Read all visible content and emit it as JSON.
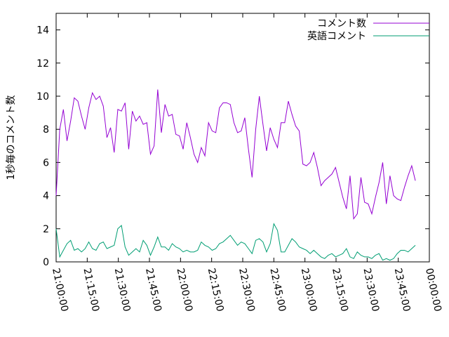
{
  "chart_data": {
    "type": "line",
    "ylabel": "1秒毎のコメント数",
    "x": [
      0,
      1.75,
      3.5,
      5.25,
      7,
      8.75,
      10.5,
      12.25,
      14,
      15.75,
      17.5,
      19.25,
      21,
      22.75,
      24.5,
      26.25,
      28,
      29.75,
      31.5,
      33.25,
      35,
      36.75,
      38.5,
      40.25,
      42,
      43.75,
      45.5,
      47.25,
      49,
      50.75,
      52.5,
      54.25,
      56,
      57.75,
      59.5,
      61.25,
      63,
      64.75,
      66.5,
      68.25,
      70,
      71.75,
      73.5,
      75.25,
      77,
      78.75,
      80.5,
      82.25,
      84,
      85.75,
      87.5,
      89.25,
      91,
      92.75,
      94.5,
      96.25,
      98,
      99.75,
      101.5,
      103.25,
      105,
      106.75,
      108.5,
      110.25,
      112,
      113.75,
      115.5,
      117.25,
      119,
      120.75,
      122.5,
      124.25,
      126,
      127.75,
      129.5,
      131.25,
      133,
      134.75,
      136.5,
      138.25,
      140,
      141.75,
      143.5,
      145.25,
      147,
      148.75,
      150.5,
      152.25,
      154,
      155.75,
      157.5,
      159.25,
      161,
      162.75,
      164.5,
      166.25,
      168,
      169.75,
      171.5,
      173.25
    ],
    "series": [
      {
        "name": "コメント数",
        "color": "#9400d3",
        "values": [
          4,
          8,
          9.2,
          7.3,
          8.5,
          9.9,
          9.7,
          8.8,
          8,
          9.3,
          10.2,
          9.8,
          10,
          9.4,
          7.5,
          8.1,
          6.6,
          9.2,
          9.1,
          9.6,
          6.8,
          9.1,
          8.5,
          8.8,
          8.3,
          8.4,
          6.5,
          7,
          10.4,
          7.8,
          9.5,
          8.8,
          8.9,
          7.7,
          7.6,
          6.8,
          8.4,
          7.5,
          6.5,
          6.0,
          6.9,
          6.4,
          8.4,
          7.9,
          7.8,
          9.3,
          9.6,
          9.6,
          9.5,
          8.4,
          7.8,
          7.9,
          8.7,
          6.8,
          5.1,
          8,
          10,
          8.3,
          6.7,
          8.1,
          7.4,
          6.9,
          8.4,
          8.4,
          9.7,
          8.9,
          8.2,
          7.9,
          5.9,
          5.8,
          6.0,
          6.6,
          5.7,
          4.6,
          4.9,
          5.1,
          5.3,
          5.7,
          4.8,
          3.9,
          3.2,
          5.2,
          2.6,
          2.9,
          5.1,
          3.6,
          3.5,
          2.9,
          3.9,
          4.8,
          6,
          3.5,
          5.2,
          4,
          3.8,
          3.7,
          4.5,
          5.2,
          5.8,
          4.9
        ]
      },
      {
        "name": "英語コメント",
        "color": "#009e73",
        "values": [
          2.0,
          0.3,
          0.7,
          1.1,
          1.3,
          0.7,
          0.8,
          0.6,
          0.8,
          1.2,
          0.8,
          0.7,
          1.1,
          1.2,
          0.8,
          0.9,
          1.0,
          2.0,
          2.2,
          0.9,
          0.4,
          0.6,
          0.8,
          0.6,
          1.3,
          1.0,
          0.4,
          0.9,
          1.5,
          0.9,
          0.9,
          0.7,
          1.1,
          0.9,
          0.8,
          0.6,
          0.7,
          0.6,
          0.6,
          0.7,
          1.2,
          1.0,
          0.9,
          0.7,
          0.8,
          1.1,
          1.2,
          1.4,
          1.6,
          1.3,
          1.0,
          1.2,
          1.1,
          0.8,
          0.5,
          1.3,
          1.4,
          1.2,
          0.6,
          1.1,
          2.3,
          1.9,
          0.6,
          0.6,
          1.0,
          1.4,
          1.2,
          0.9,
          0.8,
          0.7,
          0.5,
          0.7,
          0.5,
          0.3,
          0.2,
          0.4,
          0.5,
          0.3,
          0.4,
          0.5,
          0.8,
          0.3,
          0.2,
          0.6,
          0.4,
          0.3,
          0.3,
          0.2,
          0.4,
          0.5,
          0.1,
          0.2,
          0.1,
          0.2,
          0.5,
          0.7,
          0.7,
          0.6,
          0.8,
          1.0
        ]
      }
    ],
    "xlim": [
      0,
      180
    ],
    "xticks": [
      {
        "value": 0,
        "label": "21:00:00"
      },
      {
        "value": 15,
        "label": "21:15:00"
      },
      {
        "value": 30,
        "label": "21:30:00"
      },
      {
        "value": 45,
        "label": "21:45:00"
      },
      {
        "value": 60,
        "label": "22:00:00"
      },
      {
        "value": 75,
        "label": "22:15:00"
      },
      {
        "value": 90,
        "label": "22:30:00"
      },
      {
        "value": 105,
        "label": "22:45:00"
      },
      {
        "value": 120,
        "label": "23:00:00"
      },
      {
        "value": 135,
        "label": "23:15:00"
      },
      {
        "value": 150,
        "label": "23:30:00"
      },
      {
        "value": 165,
        "label": "23:45:00"
      },
      {
        "value": 180,
        "label": "00:00:00"
      }
    ],
    "ylim": [
      0,
      15
    ],
    "yticks": [
      0,
      2,
      4,
      6,
      8,
      10,
      12,
      14
    ],
    "legend": "top-right"
  }
}
